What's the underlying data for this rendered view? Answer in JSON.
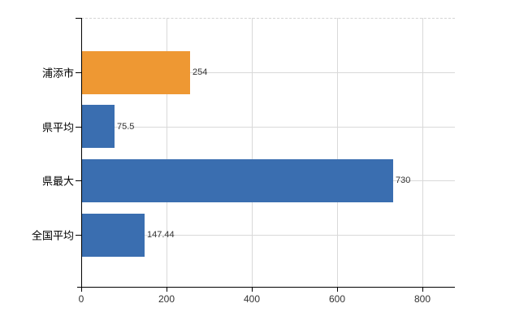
{
  "chart_data": {
    "type": "bar",
    "orientation": "horizontal",
    "title": "",
    "xlabel": "",
    "ylabel": "",
    "categories": [
      "浦添市",
      "県平均",
      "県最大",
      "全国平均"
    ],
    "values": [
      254,
      75.5,
      730,
      147.44
    ],
    "value_labels": [
      "254",
      "75.5",
      "730",
      "147.44"
    ],
    "bar_colors": [
      "#EE9833",
      "#3A6EB0",
      "#3A6EB0",
      "#3A6EB0"
    ],
    "highlight_color": "#EE9833",
    "base_color": "#3A6EB0",
    "xlim": [
      0,
      876
    ],
    "xticks": [
      0,
      200,
      400,
      600,
      800
    ],
    "xtick_labels": [
      "0",
      "200",
      "400",
      "600",
      "800"
    ],
    "grid": true,
    "legend": false,
    "gridline_color": "#d9d9d9",
    "axis_color": "#000000",
    "background_color": "#ffffff"
  }
}
